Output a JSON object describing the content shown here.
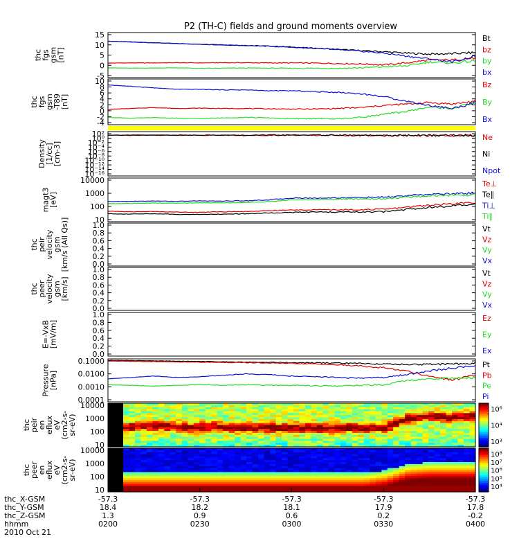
{
  "title": "P2 (TH-C) fields and ground moments overview",
  "colors": {
    "black": "#000000",
    "red": "#e00000",
    "green": "#22dd22",
    "blue": "#1010d0",
    "yellow": "#ffff00"
  },
  "chart_data": [
    {
      "type": "line",
      "id": "fgs-gsm",
      "ylabel": [
        "thc",
        "fgs",
        "gsm",
        "[nT]"
      ],
      "yticks": [
        "15",
        "10",
        "5",
        "0",
        "-5"
      ],
      "legend": [
        {
          "label": "Bt",
          "color": "black"
        },
        {
          "label": "bz",
          "color": "red"
        },
        {
          "label": "by",
          "color": "green"
        },
        {
          "label": "bx",
          "color": "blue"
        }
      ],
      "ylim": [
        -7,
        16
      ],
      "series": [
        {
          "name": "Bt",
          "color": "black",
          "values": [
            11.6,
            11.2,
            10.8,
            10.4,
            10.0,
            9.7,
            9.4,
            9.1,
            8.6,
            8.0,
            7.4,
            6.8,
            6.2,
            5.5,
            5.0,
            5.2,
            5.8
          ]
        },
        {
          "name": "bz",
          "color": "red",
          "values": [
            0.4,
            0.5,
            0.5,
            0.6,
            0.5,
            0.6,
            0.6,
            0.5,
            0.5,
            0.4,
            0.2,
            0.0,
            -0.5,
            0.5,
            2.0,
            2.0,
            3.0
          ]
        },
        {
          "name": "by",
          "color": "green",
          "values": [
            -2.0,
            -2.2,
            -2.1,
            -2.0,
            -2.3,
            -2.2,
            -2.1,
            -2.2,
            -2.3,
            -2.2,
            -2.3,
            -2.0,
            -1.5,
            -1.0,
            1.0,
            0.5,
            1.5
          ]
        },
        {
          "name": "bx",
          "color": "blue",
          "values": [
            11.6,
            11.2,
            10.8,
            10.4,
            10.0,
            9.7,
            9.4,
            9.0,
            8.5,
            7.9,
            7.2,
            6.5,
            5.5,
            4.0,
            2.5,
            1.0,
            4.0
          ]
        }
      ]
    },
    {
      "type": "line",
      "id": "fgs-gsm-t89",
      "ylabel": [
        "thc",
        "fgs",
        "gsm",
        "-T89",
        "[nT]"
      ],
      "yticks": [
        "10",
        "8",
        "6",
        "4",
        "2",
        "0",
        "-2",
        "-4"
      ],
      "legend": [
        {
          "label": "Bz",
          "color": "red"
        },
        {
          "label": "By",
          "color": "green"
        },
        {
          "label": "Bx",
          "color": "blue"
        }
      ],
      "ylim": [
        -5,
        10.5
      ],
      "series": [
        {
          "name": "Bz",
          "color": "red",
          "values": [
            0.2,
            0.5,
            0.8,
            0.5,
            0.6,
            0.5,
            0.5,
            0.4,
            0.3,
            0.3,
            0.5,
            0.8,
            1.5,
            2.0,
            2.5,
            2.0,
            3.0
          ]
        },
        {
          "name": "By",
          "color": "green",
          "values": [
            -2.5,
            -2.8,
            -2.6,
            -2.8,
            -2.9,
            -2.7,
            -2.5,
            -2.7,
            -3.0,
            -2.9,
            -3.0,
            -2.5,
            -1.5,
            -0.5,
            1.0,
            0.5,
            2.5
          ]
        },
        {
          "name": "Bx",
          "color": "blue",
          "values": [
            8.5,
            8.0,
            7.5,
            7.0,
            7.0,
            6.8,
            6.8,
            6.5,
            6.5,
            6.2,
            6.0,
            5.5,
            4.5,
            3.0,
            1.5,
            0.5,
            2.5
          ]
        }
      ]
    },
    {
      "type": "line",
      "id": "density",
      "ylabel": [
        "Density",
        "[1/cc]",
        "[cm-3]"
      ],
      "yticks": [
        "10²",
        "10⁰",
        "10⁻²",
        "10⁻⁴",
        "10⁻⁶",
        "10⁻⁸",
        "10⁻¹⁰",
        "10⁻¹²",
        "10⁻¹⁴",
        "10⁻¹⁶"
      ],
      "legend": [
        {
          "label": "Ne",
          "color": "red"
        },
        {
          "label": "Ni",
          "color": "black"
        },
        {
          "label": "Npot",
          "color": "blue"
        }
      ],
      "ylim": [
        -16,
        2
      ],
      "series": [
        {
          "name": "Ne",
          "color": "red",
          "values": [
            0.5,
            0.5,
            0.5,
            0.5,
            0.5,
            0.5,
            0.4,
            0.5,
            0.5,
            0.5,
            0.5,
            0.4,
            0.3,
            0.4,
            0.4,
            0.4,
            0.4
          ]
        },
        {
          "name": "Ni",
          "color": "black",
          "values": [
            0.6,
            0.6,
            0.6,
            0.6,
            0.6,
            0.6,
            0.5,
            0.6,
            0.6,
            0.6,
            0.6,
            0.5,
            0.4,
            0.5,
            0.5,
            0.5,
            0.5
          ]
        }
      ]
    },
    {
      "type": "line",
      "id": "magt3",
      "ylabel": [
        "magt3",
        "[eV]"
      ],
      "yticks": [
        "10000",
        "1000",
        "100",
        "10"
      ],
      "legend": [
        {
          "label": "Te⊥",
          "color": "red"
        },
        {
          "label": "Te∥",
          "color": "black"
        },
        {
          "label": "Ti⊥",
          "color": "blue"
        },
        {
          "label": "Ti∥",
          "color": "green"
        }
      ],
      "ylim": [
        1,
        4
      ],
      "series": [
        {
          "name": "Ti⊥",
          "color": "blue",
          "values": [
            2.38,
            2.4,
            2.42,
            2.4,
            2.43,
            2.42,
            2.44,
            2.5,
            2.62,
            2.62,
            2.64,
            2.66,
            2.68,
            2.78,
            2.88,
            2.92,
            2.98
          ]
        },
        {
          "name": "Ti∥",
          "color": "green",
          "values": [
            2.24,
            2.26,
            2.28,
            2.27,
            2.3,
            2.3,
            2.32,
            2.38,
            2.5,
            2.52,
            2.54,
            2.56,
            2.58,
            2.68,
            2.78,
            2.82,
            2.86
          ]
        },
        {
          "name": "Te⊥",
          "color": "red",
          "values": [
            1.72,
            1.68,
            1.7,
            1.66,
            1.65,
            1.68,
            1.7,
            1.76,
            1.8,
            1.82,
            1.82,
            1.83,
            1.85,
            2.0,
            2.15,
            2.22,
            2.32
          ]
        },
        {
          "name": "Te∥",
          "color": "black",
          "values": [
            1.55,
            1.52,
            1.55,
            1.5,
            1.5,
            1.52,
            1.54,
            1.6,
            1.64,
            1.66,
            1.66,
            1.67,
            1.68,
            1.85,
            2.0,
            2.08,
            2.18
          ]
        }
      ]
    },
    {
      "type": "line",
      "id": "peir-velocity",
      "ylabel": [
        "thc",
        "peir",
        "velocity",
        "gsm",
        "[km/s (All Qs)]"
      ],
      "yticks": [
        "1.0",
        "0.8",
        "0.6",
        "0.4",
        "0.2",
        "0.0"
      ],
      "legend": [
        {
          "label": "Vt",
          "color": "black"
        },
        {
          "label": "Vz",
          "color": "red"
        },
        {
          "label": "Vy",
          "color": "green"
        },
        {
          "label": "Vx",
          "color": "blue"
        }
      ],
      "ylim": [
        0,
        1
      ],
      "series": []
    },
    {
      "type": "line",
      "id": "peer-velocity",
      "ylabel": [
        "thc",
        "peer",
        "velocity",
        "gsm",
        "[km/s]"
      ],
      "yticks": [
        "1.0",
        "0.8",
        "0.6",
        "0.4",
        "0.2",
        "0.0"
      ],
      "legend": [
        {
          "label": "Vt",
          "color": "black"
        },
        {
          "label": "Vz",
          "color": "red"
        },
        {
          "label": "Vy",
          "color": "green"
        },
        {
          "label": "Vx",
          "color": "blue"
        }
      ],
      "ylim": [
        0,
        1
      ],
      "series": []
    },
    {
      "type": "line",
      "id": "e-vxb",
      "ylabel": [
        "E=-VxB",
        "[mV/m]"
      ],
      "yticks": [
        "1.0",
        "0.8",
        "0.6",
        "0.4",
        "0.2",
        "0.0"
      ],
      "legend": [
        {
          "label": "Ez",
          "color": "red"
        },
        {
          "label": "Ey",
          "color": "green"
        },
        {
          "label": "Ex",
          "color": "blue"
        }
      ],
      "ylim": [
        0,
        1
      ],
      "series": []
    },
    {
      "type": "line",
      "id": "pressure",
      "ylabel": [
        "Pressure",
        "[nPa]"
      ],
      "yticks": [
        "0.1000",
        "0.0100",
        "0.0010",
        "0.0001"
      ],
      "legend": [
        {
          "label": "Pt",
          "color": "black"
        },
        {
          "label": "Pb",
          "color": "red"
        },
        {
          "label": "Pe",
          "color": "green"
        },
        {
          "label": "Pi",
          "color": "blue"
        }
      ],
      "ylim": [
        -4,
        -1
      ],
      "series": [
        {
          "name": "Pt",
          "color": "black",
          "values": [
            -1.1,
            -1.12,
            -1.14,
            -1.16,
            -1.18,
            -1.2,
            -1.22,
            -1.24,
            -1.26,
            -1.28,
            -1.3,
            -1.32,
            -1.36,
            -1.4,
            -1.38,
            -1.35,
            -1.3
          ]
        },
        {
          "name": "Pb",
          "color": "red",
          "values": [
            -1.15,
            -1.17,
            -1.19,
            -1.21,
            -1.23,
            -1.25,
            -1.27,
            -1.29,
            -1.32,
            -1.36,
            -1.42,
            -1.5,
            -1.62,
            -1.85,
            -2.2,
            -2.5,
            -2.1
          ]
        },
        {
          "name": "Pi",
          "color": "blue",
          "values": [
            -2.4,
            -2.3,
            -2.2,
            -2.3,
            -2.25,
            -2.15,
            -2.05,
            -2.1,
            -2.2,
            -2.25,
            -2.3,
            -2.35,
            -2.3,
            -2.1,
            -1.85,
            -1.65,
            -1.5
          ]
        },
        {
          "name": "Pe",
          "color": "green",
          "values": [
            -2.8,
            -2.85,
            -2.9,
            -2.85,
            -2.8,
            -2.85,
            -2.8,
            -2.85,
            -2.85,
            -2.88,
            -2.9,
            -2.85,
            -2.8,
            -2.5,
            -2.4,
            -2.35,
            -2.3
          ]
        }
      ]
    },
    {
      "type": "heatmap",
      "id": "peir-en-eflux",
      "ylabel": [
        "thc",
        "peir",
        "en",
        "eflux",
        "eV",
        "(cm2-s-",
        "sr-eV)"
      ],
      "yticks": [
        "10000",
        "1000",
        "100",
        "10"
      ],
      "colorbar_ticks": [
        "10⁶",
        "10⁴",
        "10³"
      ],
      "band_center": [
        2.3,
        2.5,
        2.4,
        2.3,
        2.4,
        2.3,
        2.3,
        2.3,
        2.3,
        2.3,
        2.3,
        2.3,
        2.3,
        3.0,
        3.2,
        3.1,
        3.2
      ]
    },
    {
      "type": "heatmap",
      "id": "peer-en-eflux",
      "ylabel": [
        "thc",
        "peer",
        "en",
        "eflux",
        "eV",
        "(cm2-s-",
        "sr-eV)"
      ],
      "yticks": [
        "10000",
        "1000",
        "100",
        "10"
      ],
      "colorbar_ticks": [
        "10⁸",
        "10⁷",
        "10⁶",
        "10⁵",
        "10⁴"
      ],
      "band_edge": [
        2.3,
        2.3,
        2.3,
        2.3,
        2.3,
        2.3,
        2.3,
        2.3,
        2.3,
        2.3,
        2.3,
        2.3,
        2.5,
        3.0,
        3.1,
        3.1,
        3.1
      ]
    }
  ],
  "xaxis": {
    "row_labels": [
      "thc_X-GSM",
      "thc_Y-GSM",
      "thc_Z-GSM",
      "hhmm",
      "2010 Oct 21"
    ],
    "ticks": [
      {
        "x": "-57.3",
        "y": "18.4",
        "z": "1.3",
        "t": "0200"
      },
      {
        "x": "-57.3",
        "y": "18.2",
        "z": "0.9",
        "t": "0230"
      },
      {
        "x": "-57.3",
        "y": "18.1",
        "z": "0.6",
        "t": "0300"
      },
      {
        "x": "-57.3",
        "y": "17.9",
        "z": "0.2",
        "t": "0330"
      },
      {
        "x": "-57.3",
        "y": "17.8",
        "z": "-0.2",
        "t": "0400"
      }
    ]
  }
}
